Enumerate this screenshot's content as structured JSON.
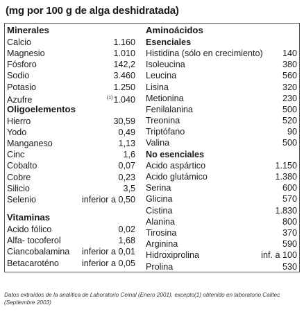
{
  "header": "(mg por 100 g de alga deshidratada)",
  "left": {
    "minerales_title": "Minerales",
    "minerales": [
      {
        "name": "Calcio",
        "value": "1.160"
      },
      {
        "name": "Magnesio",
        "value": "1.010"
      },
      {
        "name": "Fósforo",
        "value": "142,2"
      },
      {
        "name": "Sodio",
        "value": "3.460"
      },
      {
        "name": "Potasio",
        "value": "1.250"
      },
      {
        "name": "Azufre",
        "note": "(1)",
        "value": "1.040"
      }
    ],
    "oligo_title": "Oligoelementos",
    "oligo": [
      {
        "name": "Hierro",
        "value": "30,59"
      },
      {
        "name": "Yodo",
        "value": "0,49"
      },
      {
        "name": "Manganeso",
        "value": "1,13"
      },
      {
        "name": "Cinc",
        "value": "1,6"
      },
      {
        "name": "Cobalto",
        "value": "0,07"
      },
      {
        "name": "Cobre",
        "value": "0,23"
      },
      {
        "name": "Silicio",
        "value": "3,5"
      },
      {
        "name": "Selenio",
        "value": "inferior a 0,50"
      }
    ],
    "vitaminas_title": "Vitaminas",
    "vitaminas": [
      {
        "name": "Acido fólico",
        "value": "0,02"
      },
      {
        "name": "Alfa- tocoferol",
        "value": "1,68"
      },
      {
        "name": "Ciancobalamina",
        "value": "inferior a 0,01"
      },
      {
        "name": "Betacaroténo",
        "value": "inferior a 0,05"
      }
    ]
  },
  "right": {
    "amino_title": "Aminoácidos",
    "esenciales_title": "Esenciales",
    "esenciales": [
      {
        "name": "Histidina (sólo en crecimiento)",
        "value": "140"
      },
      {
        "name": "Isoleucina",
        "value": "380"
      },
      {
        "name": "Leucina",
        "value": "560"
      },
      {
        "name": "Lisina",
        "value": "320"
      },
      {
        "name": "Metionina",
        "value": "230"
      },
      {
        "name": "Fenilalanina",
        "value": "500"
      },
      {
        "name": "Treonina",
        "value": "520"
      },
      {
        "name": "Triptófano",
        "value": "90"
      },
      {
        "name": "Valina",
        "value": "500"
      }
    ],
    "no_esenciales_title": "No esenciales",
    "no_esenciales": [
      {
        "name": "Acido aspártico",
        "value": "1.150"
      },
      {
        "name": "Acido glutámico",
        "value": "1.380"
      },
      {
        "name": "Serina",
        "value": "600"
      },
      {
        "name": "Glicina",
        "value": "570"
      },
      {
        "name": "Cistina",
        "value": "1.830"
      },
      {
        "name": "Alanina",
        "value": "800"
      },
      {
        "name": "Tirosina",
        "value": "370"
      },
      {
        "name": "Arginina",
        "value": "590"
      },
      {
        "name": "Hidroxiprolina",
        "value": "inf. a 100"
      },
      {
        "name": "Prolina",
        "value": "530"
      }
    ]
  },
  "footnote": "Datos extraídos de la analítica de Laboratorio Ceinal (Enero 2001), excepto(1) obtenido en laboratorio Calitec (Septiembre 2003)"
}
